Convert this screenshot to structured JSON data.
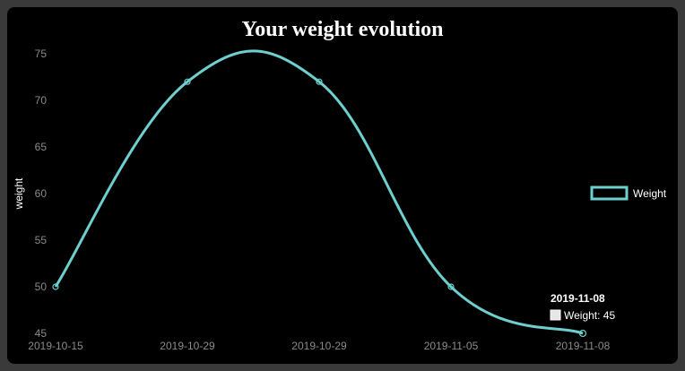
{
  "colors": {
    "line": "#6ecfcf",
    "background": "#000000",
    "frame": "#3a3a3a"
  },
  "tooltip": {
    "title": "2019-11-08",
    "body": "Weight: 45"
  },
  "chart_data": {
    "type": "line",
    "title": "Your weight evolution",
    "xlabel": "",
    "ylabel": "weight",
    "categories": [
      "2019-10-15",
      "2019-10-29",
      "2019-10-29",
      "2019-11-05",
      "2019-11-08"
    ],
    "series": [
      {
        "name": "Weight",
        "values": [
          50,
          72,
          72,
          50,
          45
        ]
      }
    ],
    "ylim": [
      45,
      75
    ],
    "yticks": [
      45,
      50,
      55,
      60,
      65,
      70,
      75
    ],
    "grid": false,
    "legend": "right",
    "smooth": true
  }
}
